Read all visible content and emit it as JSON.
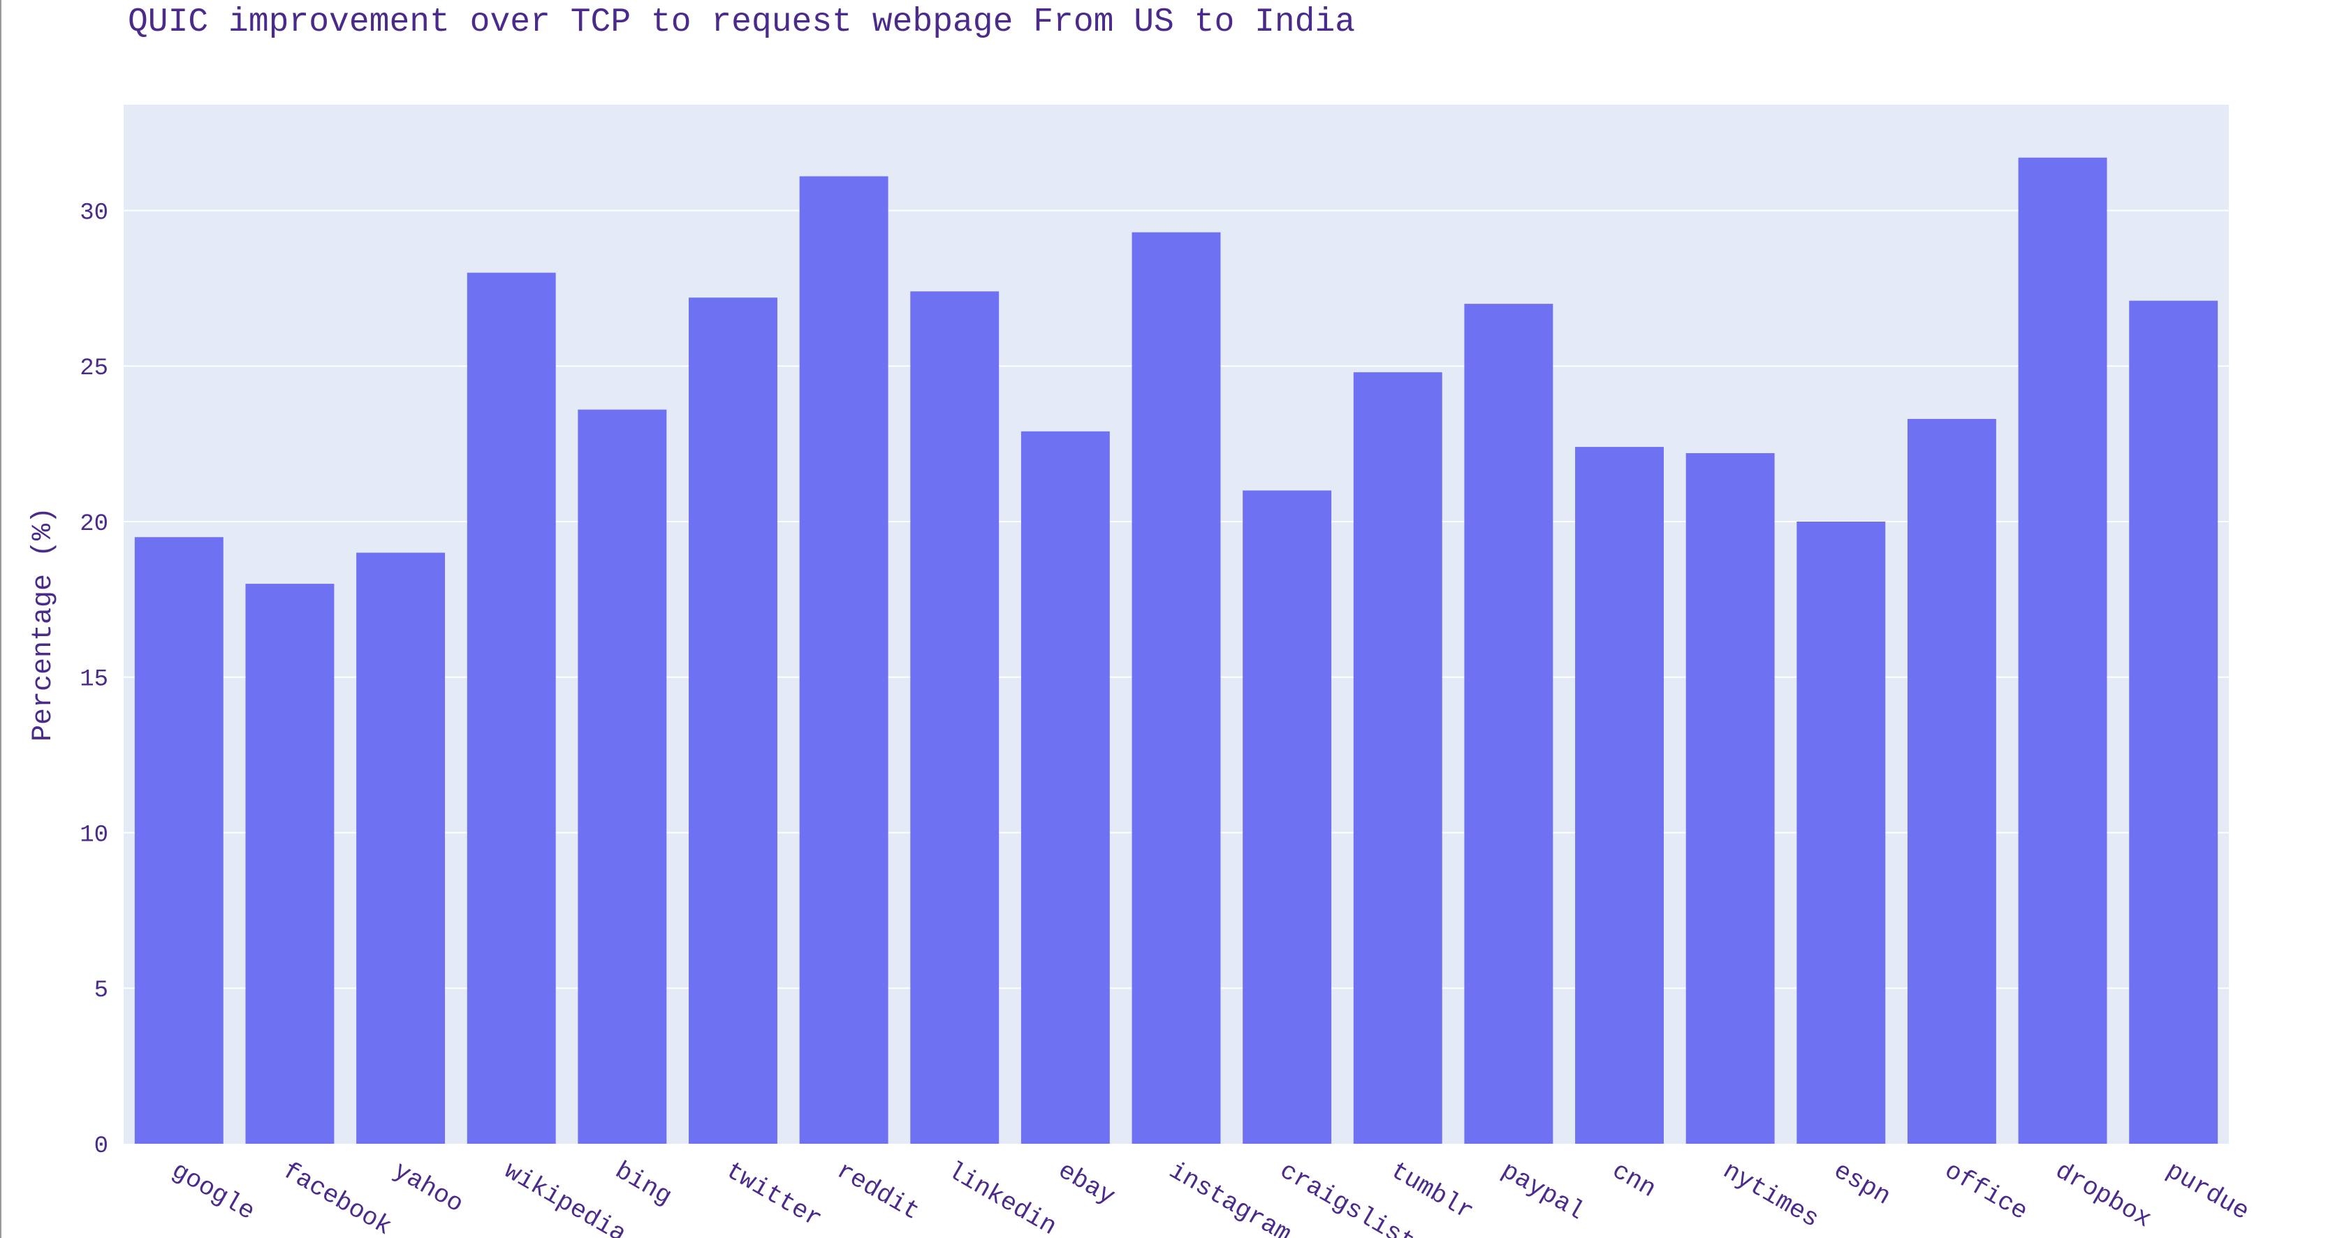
{
  "chart_data": {
    "type": "bar",
    "title": "QUIC improvement over TCP to request webpage From US to India",
    "xlabel": "",
    "ylabel": "Percentage (%)",
    "categories": [
      "google",
      "facebook",
      "yahoo",
      "wikipedia",
      "bing",
      "twitter",
      "reddit",
      "linkedin",
      "ebay",
      "instagram",
      "craigslist",
      "tumblr",
      "paypal",
      "cnn",
      "nytimes",
      "espn",
      "office",
      "dropbox",
      "purdue"
    ],
    "values": [
      19.5,
      18.0,
      19.0,
      28.0,
      23.6,
      27.2,
      31.1,
      27.4,
      22.9,
      29.3,
      21.0,
      24.8,
      27.0,
      22.4,
      22.2,
      20.0,
      23.3,
      31.7,
      27.1
    ],
    "yticks": [
      0,
      5,
      10,
      15,
      20,
      25,
      30
    ],
    "ylim": [
      0,
      33.4
    ],
    "grid": true,
    "colors": {
      "bar": "#6E72F2",
      "plot_bg": "#E5EBF6",
      "text": "#4A2A8A",
      "grid": "#FFFFFF"
    }
  }
}
